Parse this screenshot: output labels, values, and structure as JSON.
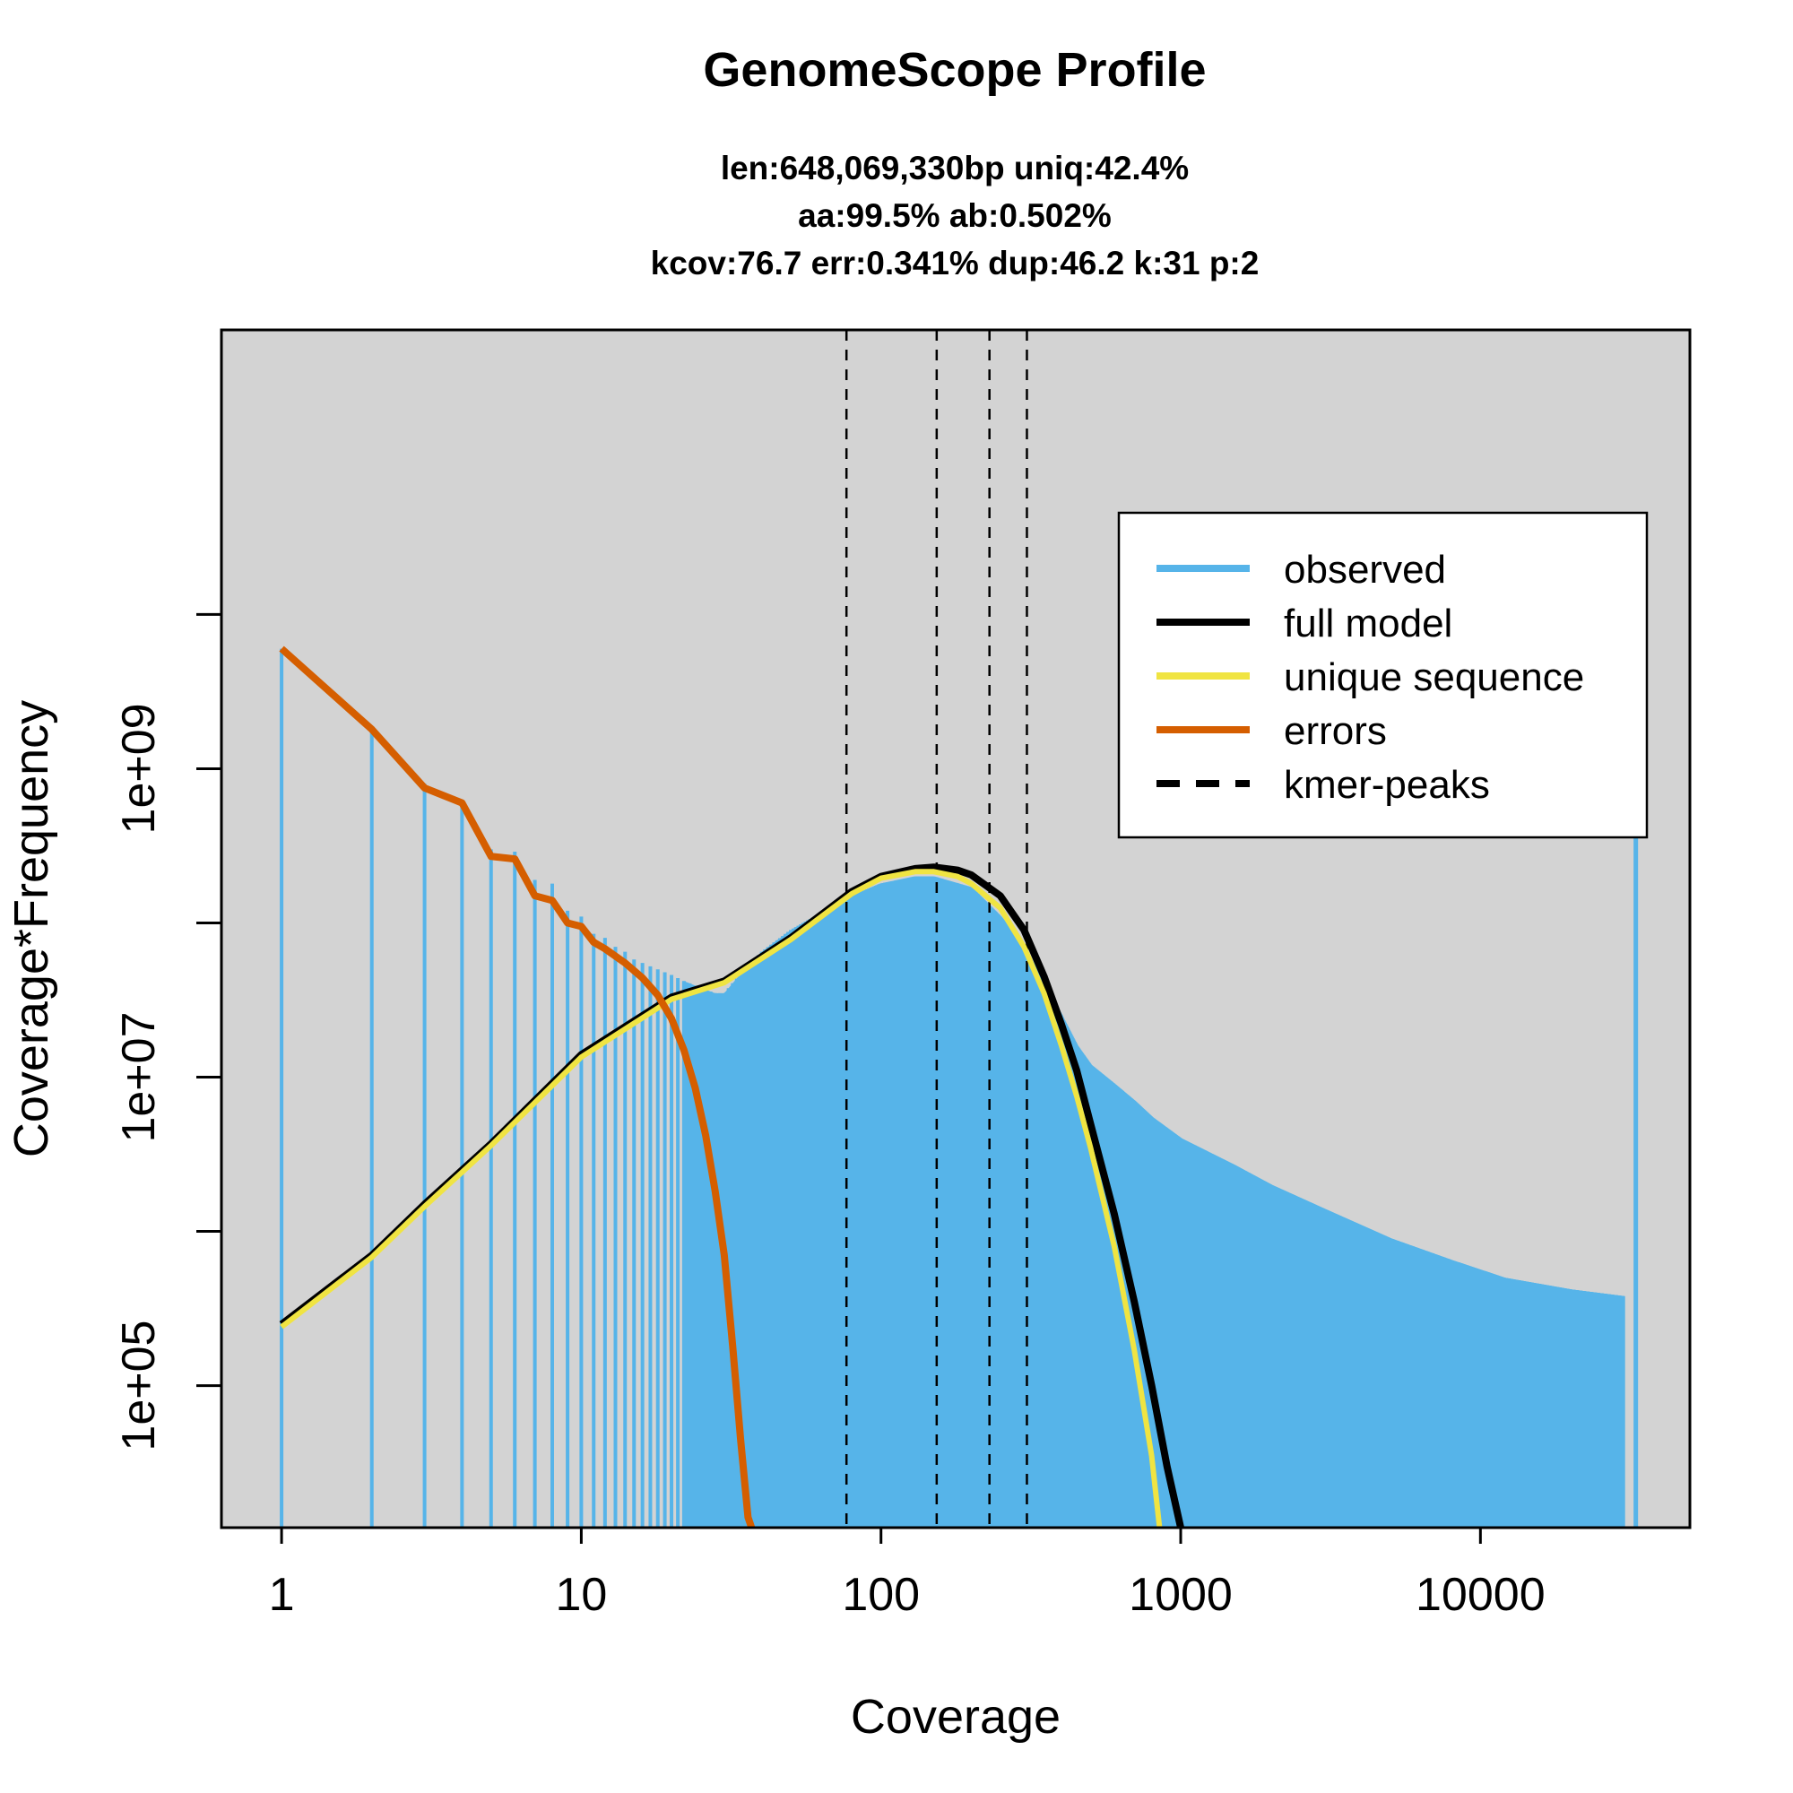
{
  "chart_data": {
    "type": "line",
    "title": "GenomeScope Profile",
    "subtitle_lines": [
      "len:648,069,330bp uniq:42.4%",
      "aa:99.5% ab:0.502%",
      "kcov:76.7 err:0.341%  dup:46.2  k:31 p:2"
    ],
    "xlabel": "Coverage",
    "ylabel": "Coverage*Frequency",
    "x_scale": "log",
    "y_scale": "log",
    "xlim": [
      0.63,
      50000
    ],
    "ylim": [
      12000,
      700000000000
    ],
    "x_ticks": [
      1,
      10,
      100,
      1000,
      10000
    ],
    "x_tick_labels": [
      "1",
      "10",
      "100",
      "1000",
      "10000"
    ],
    "y_ticks": [
      100000,
      1000000,
      10000000,
      100000000,
      1000000000,
      10000000000
    ],
    "y_tick_labels": [
      "1e+05",
      "",
      "1e+07",
      "",
      "1e+09",
      ""
    ],
    "background_color": "#d3d3d3",
    "colors": {
      "observed": "#56b4e9",
      "full_model": "#000000",
      "unique_sequence": "#f0e442",
      "errors": "#d55e00",
      "kmer_peaks": "#000000"
    },
    "legend": {
      "position": "top-right",
      "entries": [
        {
          "label": "observed",
          "key": "observed",
          "style": "solid"
        },
        {
          "label": "full model",
          "key": "full_model",
          "style": "solid"
        },
        {
          "label": "unique sequence",
          "key": "unique_sequence",
          "style": "solid"
        },
        {
          "label": "errors",
          "key": "errors",
          "style": "solid"
        },
        {
          "label": "kmer-peaks",
          "key": "kmer_peaks",
          "style": "dashed"
        }
      ]
    },
    "kmer_peaks": [
      76.7,
      153.4,
      230.1,
      306.8
    ],
    "observed": {
      "x": [
        1,
        2,
        3,
        4,
        5,
        6,
        7,
        8,
        9,
        10,
        11,
        12,
        13,
        14,
        15,
        16,
        18,
        20,
        22,
        25,
        28,
        30,
        35,
        40,
        50,
        60,
        80,
        100,
        130,
        150,
        200,
        250,
        300,
        350,
        400,
        450,
        500,
        600,
        700,
        800,
        1000,
        1500,
        2000,
        3000,
        5000,
        8000,
        12000,
        20000,
        30000,
        33000
      ],
      "y": [
        6000000000,
        1800000000,
        800000000,
        600000000,
        300000000,
        290000000,
        190000000,
        180000000,
        120000000,
        110000000,
        85000000,
        80000000,
        70000000,
        65000000,
        58000000,
        55000000,
        50000000,
        46000000,
        42000000,
        38000000,
        35000000,
        35000000,
        50000000,
        65000000,
        90000000,
        110000000,
        150000000,
        180000000,
        200000000,
        200000000,
        170000000,
        110000000,
        70000000,
        40000000,
        25000000,
        16000000,
        12000000,
        9000000,
        7000000,
        5500000,
        4000000,
        2700000,
        2000000,
        1400000,
        900000,
        650000,
        500000,
        420000,
        380000,
        40000000000
      ]
    },
    "full_model": {
      "x": [
        1,
        2,
        3,
        5,
        10,
        20,
        30,
        50,
        80,
        100,
        130,
        150,
        180,
        200,
        250,
        300,
        350,
        400,
        450,
        500,
        600,
        700,
        800,
        900,
        1000
      ],
      "y": [
        250000,
        700000,
        1500000,
        3700000,
        14000000,
        33000000,
        42000000,
        80000000,
        160000000,
        200000000,
        225000000,
        230000000,
        220000000,
        205000000,
        150000000,
        90000000,
        45000000,
        22000000,
        11000000,
        5000000,
        1300000,
        350000,
        100000,
        30000,
        12000
      ]
    },
    "unique_sequence": {
      "x": [
        1,
        2,
        3,
        5,
        10,
        20,
        30,
        50,
        80,
        100,
        130,
        150,
        180,
        200,
        250,
        300,
        350,
        400,
        450,
        500,
        600,
        700,
        800,
        850
      ],
      "y": [
        240000,
        680000,
        1450000,
        3600000,
        13500000,
        32000000,
        41000000,
        78000000,
        155000000,
        195000000,
        215000000,
        215000000,
        200000000,
        180000000,
        125000000,
        70000000,
        35000000,
        16000000,
        7500000,
        3500000,
        800000,
        170000,
        35000,
        12000
      ]
    },
    "errors": {
      "x": [
        1,
        2,
        3,
        4,
        5,
        6,
        7,
        8,
        9,
        10,
        11,
        12,
        14,
        16,
        18,
        20,
        22,
        24,
        26,
        28,
        30,
        32,
        34,
        36,
        37
      ],
      "y": [
        6000000000,
        1800000000,
        750000000,
        600000000,
        270000000,
        260000000,
        150000000,
        140000000,
        100000000,
        95000000,
        75000000,
        68000000,
        55000000,
        44000000,
        34000000,
        24000000,
        15000000,
        8500000,
        4200000,
        1800000,
        700000,
        180000,
        45000,
        14000,
        12000
      ]
    }
  }
}
